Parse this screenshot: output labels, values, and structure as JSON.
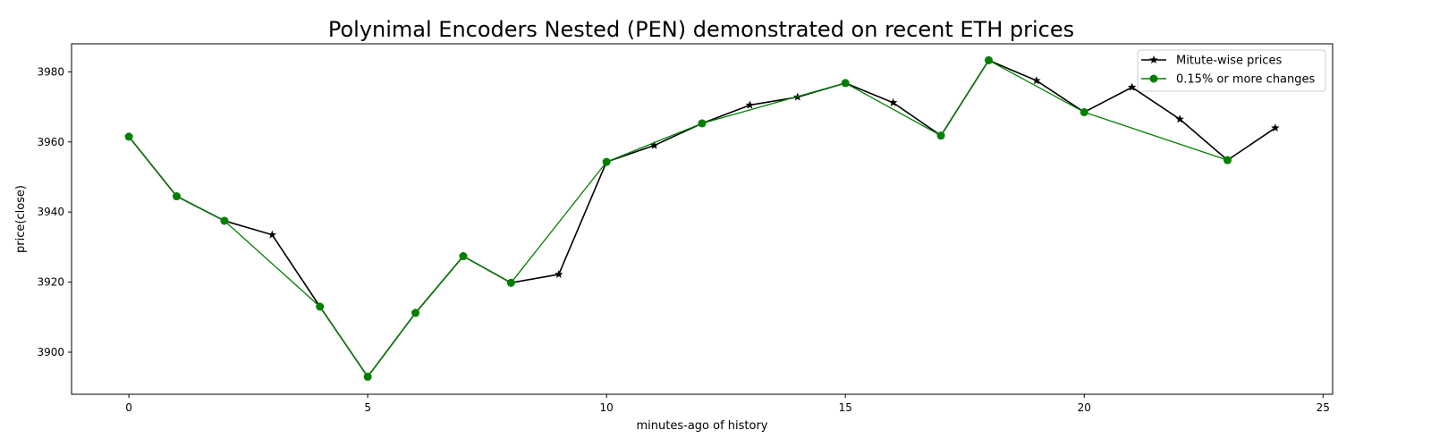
{
  "chart_data": {
    "type": "line",
    "title": "Polynimal Encoders Nested (PEN) demonstrated on recent ETH prices",
    "xlabel": "minutes-ago of history",
    "ylabel": "price(close)",
    "xlim": [
      -1.2,
      25.2
    ],
    "ylim": [
      3888,
      3988
    ],
    "xticks": [
      0,
      5,
      10,
      15,
      20,
      25
    ],
    "yticks": [
      3900,
      3920,
      3940,
      3960,
      3980
    ],
    "grid": false,
    "legend_position": "top-right",
    "series": [
      {
        "name": "Mitute-wise prices",
        "color": "#000000",
        "marker": "star",
        "x": [
          0,
          1,
          2,
          3,
          4,
          5,
          6,
          7,
          8,
          9,
          10,
          11,
          12,
          13,
          14,
          15,
          16,
          17,
          18,
          19,
          20,
          21,
          22,
          23,
          24
        ],
        "y": [
          3961.5,
          3944.5,
          3937.5,
          3933.5,
          3913,
          3893,
          3911.2,
          3927.4,
          3919.8,
          3922.2,
          3954.3,
          3959,
          3965.3,
          3970.5,
          3972.8,
          3976.8,
          3971.2,
          3961.8,
          3983.3,
          3977.5,
          3968.5,
          3975.6,
          3966.5,
          3954.8,
          3964
        ]
      },
      {
        "name": "0.15% or more changes",
        "color": "#008000",
        "marker": "circle",
        "x": [
          0,
          1,
          2,
          4,
          5,
          6,
          7,
          8,
          10,
          12,
          15,
          17,
          18,
          20,
          23
        ],
        "y": [
          3961.5,
          3944.5,
          3937.5,
          3913,
          3893,
          3911.2,
          3927.4,
          3919.8,
          3954.3,
          3965.3,
          3976.8,
          3961.8,
          3983.3,
          3968.5,
          3954.8
        ]
      }
    ]
  }
}
